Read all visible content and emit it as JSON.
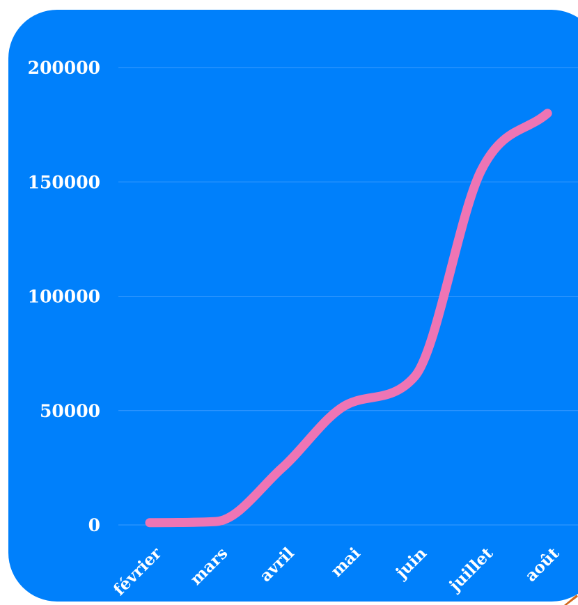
{
  "colors": {
    "background": "#0080fb",
    "line": "#ee75b4",
    "grid": "#3a9bff",
    "text": "#ffffff",
    "corner_accent": "#d2691e"
  },
  "chart_data": {
    "type": "line",
    "title": "",
    "xlabel": "",
    "ylabel": "",
    "categories": [
      "février",
      "mars",
      "avril",
      "mai",
      "juin",
      "juillet",
      "août"
    ],
    "series": [
      {
        "values": [
          1000,
          1500,
          25000,
          53000,
          65000,
          155000,
          180000
        ]
      }
    ],
    "ylim": [
      0,
      200000
    ],
    "yticks": [
      0,
      50000,
      100000,
      150000,
      200000
    ],
    "grid": true,
    "legend": "none",
    "smooth": true
  }
}
